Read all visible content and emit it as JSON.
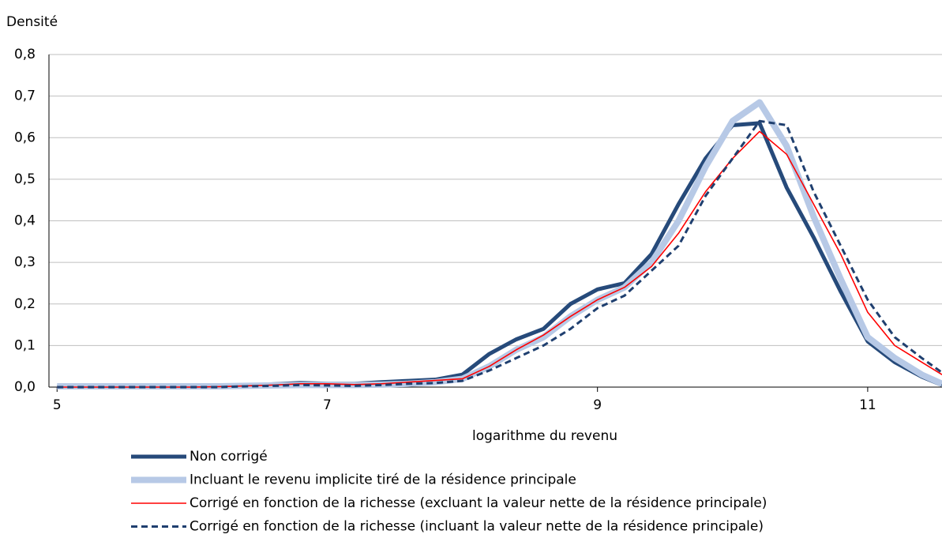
{
  "chart_data": {
    "type": "line",
    "y_axis_title": "Densité",
    "x_axis_title": "logarithme du revenu",
    "x": [
      5.0,
      5.2,
      5.4,
      5.6,
      5.8,
      6.0,
      6.2,
      6.4,
      6.6,
      6.8,
      7.0,
      7.2,
      7.4,
      7.6,
      7.8,
      8.0,
      8.2,
      8.4,
      8.6,
      8.8,
      9.0,
      9.2,
      9.4,
      9.6,
      9.8,
      10.0,
      10.2,
      10.4,
      10.6,
      10.8,
      11.0,
      11.2,
      11.4,
      11.55
    ],
    "series": [
      {
        "name": "Non corrigé",
        "color": "#264a7a",
        "linewidth": 5,
        "dash": false,
        "values": [
          0,
          0,
          0,
          0,
          0,
          0,
          0.002,
          0.004,
          0.007,
          0.01,
          0.008,
          0.008,
          0.012,
          0.015,
          0.018,
          0.03,
          0.08,
          0.115,
          0.14,
          0.2,
          0.235,
          0.25,
          0.32,
          0.44,
          0.55,
          0.63,
          0.635,
          0.48,
          0.36,
          0.23,
          0.11,
          0.06,
          0.025,
          0.005
        ]
      },
      {
        "name": "Incluant le revenu implicite tiré de la résidence principale",
        "color": "#b7c9e6",
        "linewidth": 8,
        "dash": false,
        "values": [
          0.002,
          0.002,
          0.002,
          0.002,
          0.002,
          0.002,
          0.002,
          0.003,
          0.004,
          0.005,
          0.005,
          0.005,
          0.006,
          0.008,
          0.012,
          0.02,
          0.05,
          0.09,
          0.12,
          0.17,
          0.21,
          0.24,
          0.3,
          0.4,
          0.53,
          0.64,
          0.685,
          0.58,
          0.41,
          0.26,
          0.12,
          0.07,
          0.03,
          0.008
        ]
      },
      {
        "name": "Corrigé en fonction de la richesse (excluant la valeur nette de la résidence principale)",
        "color": "#ff0000",
        "linewidth": 1.6,
        "dash": false,
        "values": [
          0,
          0,
          0,
          0,
          0,
          0,
          0.001,
          0.003,
          0.005,
          0.008,
          0.008,
          0.006,
          0.008,
          0.012,
          0.016,
          0.02,
          0.05,
          0.09,
          0.125,
          0.17,
          0.21,
          0.24,
          0.29,
          0.37,
          0.47,
          0.55,
          0.615,
          0.56,
          0.44,
          0.32,
          0.18,
          0.1,
          0.06,
          0.03
        ]
      },
      {
        "name": "Corrigé en fonction de la richesse (incluant la valeur nette de la résidence principale)",
        "color": "#1f3f6f",
        "linewidth": 3,
        "dash": true,
        "values": [
          0,
          0,
          0,
          0,
          0,
          0,
          0,
          0.002,
          0.003,
          0.005,
          0.004,
          0.003,
          0.005,
          0.008,
          0.01,
          0.015,
          0.04,
          0.07,
          0.1,
          0.14,
          0.19,
          0.22,
          0.28,
          0.34,
          0.46,
          0.55,
          0.64,
          0.63,
          0.47,
          0.34,
          0.21,
          0.12,
          0.07,
          0.035
        ]
      }
    ],
    "xlim": [
      4.94,
      11.55
    ],
    "xticks": [
      5,
      7,
      9,
      11
    ],
    "ylim": [
      0,
      0.8
    ],
    "yticks": [
      {
        "value": 0,
        "label": "0,0"
      },
      {
        "value": 0.1,
        "label": "0,1"
      },
      {
        "value": 0.2,
        "label": "0,2"
      },
      {
        "value": 0.3,
        "label": "0,3"
      },
      {
        "value": 0.4,
        "label": "0,4"
      },
      {
        "value": 0.5,
        "label": "0,5"
      },
      {
        "value": 0.6,
        "label": "0,6"
      },
      {
        "value": 0.7,
        "label": "0,7"
      },
      {
        "value": 0.8,
        "label": "0,8"
      }
    ],
    "grid": true
  }
}
